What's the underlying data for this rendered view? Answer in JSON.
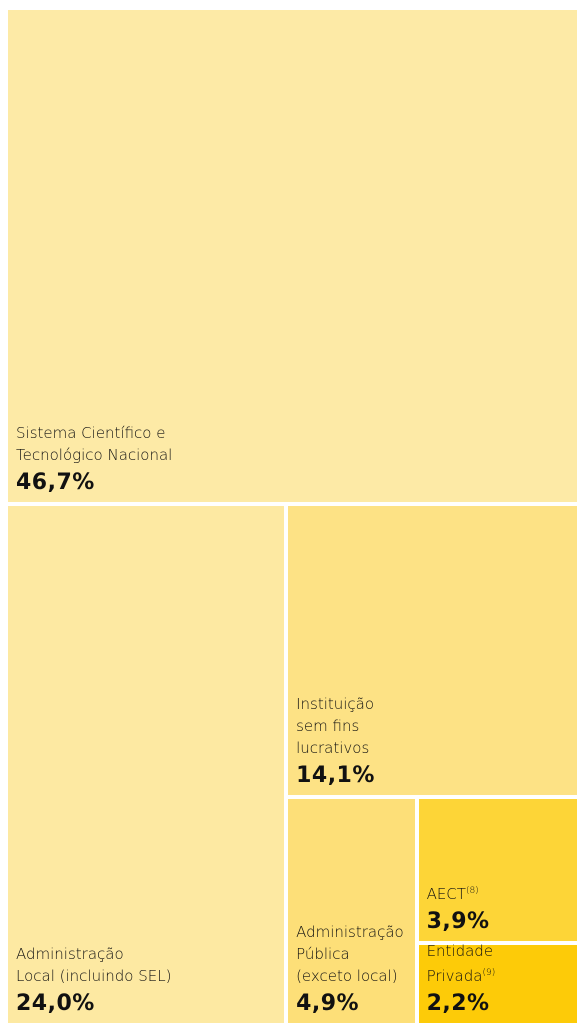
{
  "chart_data": {
    "type": "treemap",
    "categories": [
      "Sistema Científico e\nTecnológico Nacional",
      "Administração\nLocal (incluindo SEL)",
      "Instituição\nsem fins\nlucrativos",
      "Administração\nPública\n(exceto local)",
      "AECT",
      "Entidade\nPrivada"
    ],
    "category_notes": [
      null,
      null,
      null,
      null,
      "(8)",
      "(9)"
    ],
    "values": [
      46.7,
      24.0,
      14.1,
      4.9,
      3.9,
      2.2
    ],
    "value_labels": [
      "46,7%",
      "24,0%",
      "14,1%",
      "4,9%",
      "3,9%",
      "2,2%"
    ],
    "colors": [
      "#fdeaa6",
      "#fde9a2",
      "#fde285",
      "#fddf78",
      "#fdd537",
      "#fdcb08"
    ]
  }
}
